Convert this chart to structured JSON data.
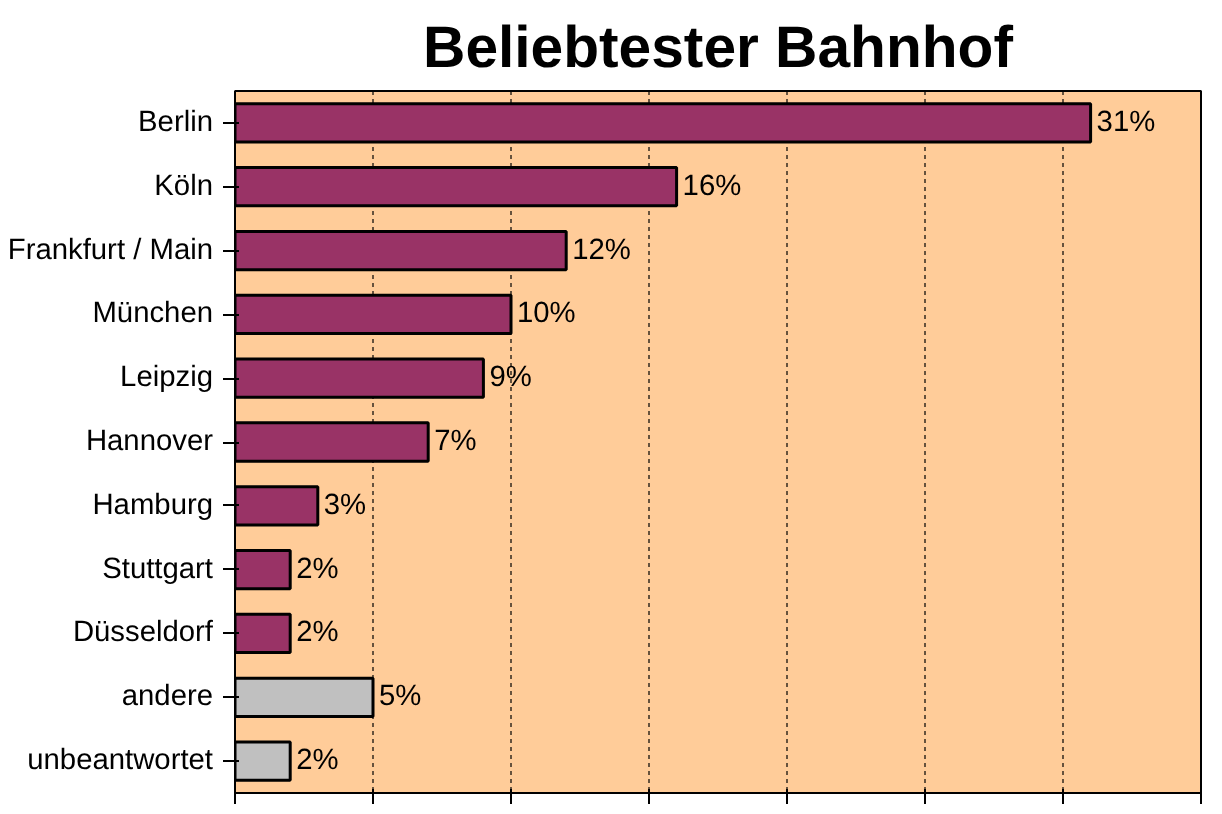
{
  "chart_data": {
    "type": "bar",
    "orientation": "horizontal",
    "title": "Beliebtester Bahnhof",
    "categories": [
      "Berlin",
      "Köln",
      "Frankfurt / Main",
      "München",
      "Leipzig",
      "Hannover",
      "Hamburg",
      "Stuttgart",
      "Düsseldorf",
      "andere",
      "unbeantwortet"
    ],
    "values": [
      31,
      16,
      12,
      10,
      9,
      7,
      3,
      2,
      2,
      5,
      2
    ],
    "value_labels": [
      "31%",
      "16%",
      "12%",
      "10%",
      "9%",
      "7%",
      "3%",
      "2%",
      "2%",
      "5%",
      "2%"
    ],
    "colors": [
      "#993366",
      "#993366",
      "#993366",
      "#993366",
      "#993366",
      "#993366",
      "#993366",
      "#993366",
      "#993366",
      "#c0c0c0",
      "#c0c0c0"
    ],
    "xlim": [
      0,
      35
    ],
    "xticks": [
      {
        "value": 0,
        "label": null
      },
      {
        "value": 5,
        "label": null
      },
      {
        "value": 10,
        "label": null
      },
      {
        "value": 15,
        "label": null
      },
      {
        "value": 20,
        "label": null
      },
      {
        "value": 25,
        "label": null
      },
      {
        "value": 30,
        "label": null
      },
      {
        "value": 35,
        "label": null
      }
    ],
    "grid": "x",
    "tick_labels": "y"
  }
}
